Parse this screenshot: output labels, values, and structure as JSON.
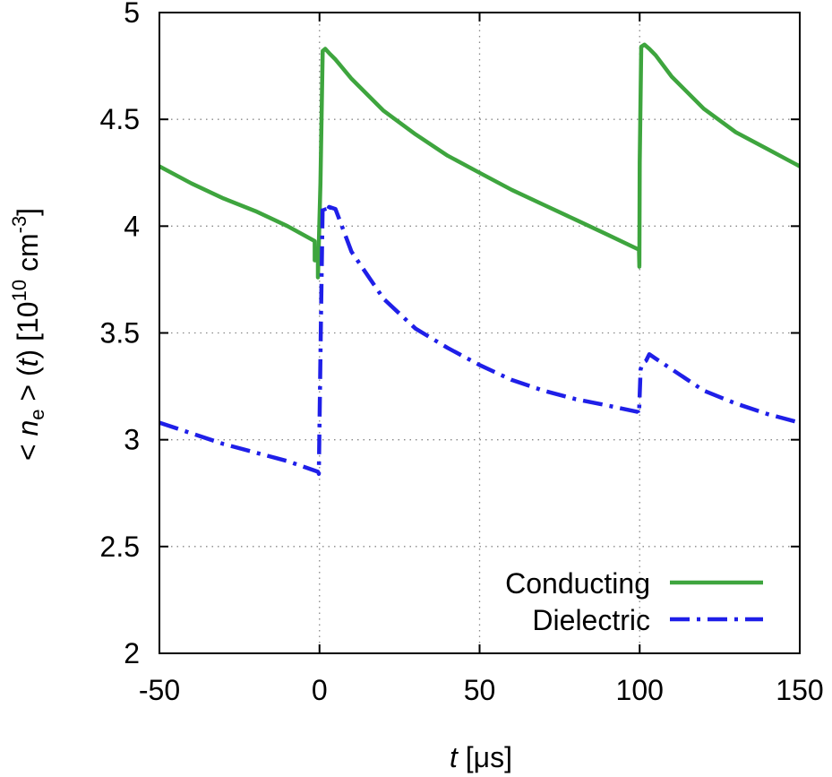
{
  "chart_data": {
    "type": "line",
    "xlabel_var": "t",
    "xlabel_unit": " [μs]",
    "ylabel_prefix": "< ",
    "ylabel_var": "n",
    "ylabel_sub": "e",
    "ylabel_mid": " > (",
    "ylabel_t": "t",
    "ylabel_paren": ") [10",
    "ylabel_exp1": "10",
    "ylabel_unit": " cm",
    "ylabel_exp2": "-3",
    "ylabel_close": "]",
    "xlim": [
      -50,
      150
    ],
    "ylim": [
      2,
      5
    ],
    "xticks": [
      -50,
      0,
      50,
      100,
      150
    ],
    "xtick_labels": [
      "-50",
      "0",
      "50",
      "100",
      "150"
    ],
    "yticks": [
      2,
      2.5,
      3,
      3.5,
      4,
      4.5,
      5
    ],
    "ytick_labels": [
      "2",
      "2.5",
      "3",
      "3.5",
      "4",
      "4.5",
      "5"
    ],
    "grid": true,
    "legend_position": "bottom-right",
    "series": [
      {
        "name": "Conducting",
        "color": "#3ea53e",
        "style": "solid",
        "x": [
          -50,
          -40,
          -30,
          -20,
          -10,
          -1.5,
          -1.5,
          -0.5,
          -0.5,
          0.3,
          1,
          1.8,
          3,
          5,
          10,
          20,
          30,
          40,
          50,
          60,
          70,
          80,
          90,
          99.8,
          99.9,
          100,
          100.5,
          101.5,
          103,
          105,
          110,
          120,
          130,
          140,
          150
        ],
        "y": [
          4.28,
          4.2,
          4.13,
          4.07,
          4.0,
          3.93,
          3.84,
          3.84,
          3.76,
          4.2,
          4.82,
          4.83,
          4.81,
          4.78,
          4.69,
          4.54,
          4.43,
          4.33,
          4.25,
          4.17,
          4.1,
          4.03,
          3.96,
          3.89,
          3.81,
          4.3,
          4.84,
          4.85,
          4.83,
          4.8,
          4.7,
          4.55,
          4.44,
          4.36,
          4.28
        ]
      },
      {
        "name": "Dielectric",
        "color": "#1f1fe8",
        "style": "dash-dot",
        "x": [
          -50,
          -40,
          -30,
          -20,
          -10,
          -0.5,
          -0.2,
          0.5,
          1,
          2,
          3,
          5,
          10,
          20,
          30,
          40,
          50,
          60,
          70,
          80,
          90,
          99.5,
          99.8,
          100.3,
          101,
          102,
          103,
          105,
          110,
          120,
          130,
          140,
          150
        ],
        "y": [
          3.08,
          3.03,
          2.98,
          2.94,
          2.9,
          2.85,
          2.84,
          3.6,
          4.1,
          4.06,
          4.09,
          4.08,
          3.88,
          3.66,
          3.52,
          3.43,
          3.35,
          3.28,
          3.23,
          3.19,
          3.16,
          3.13,
          3.12,
          3.33,
          3.36,
          3.37,
          3.4,
          3.38,
          3.33,
          3.23,
          3.17,
          3.12,
          3.08
        ]
      }
    ]
  }
}
